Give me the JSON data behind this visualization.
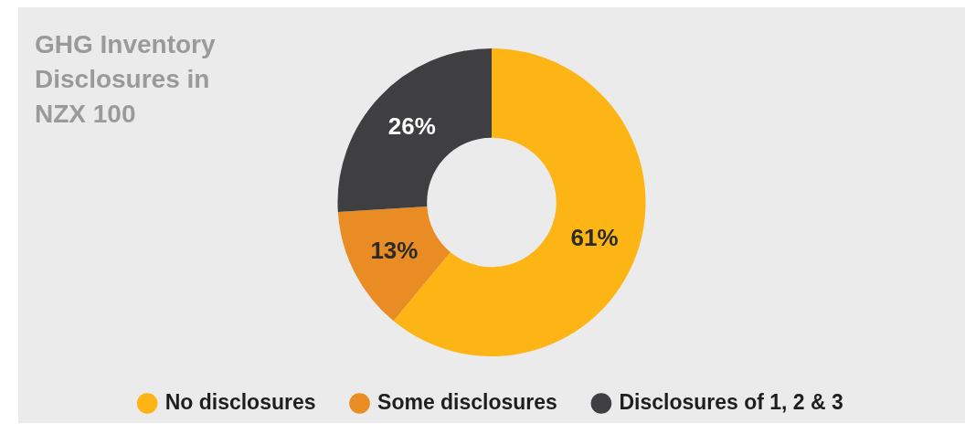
{
  "chart_data": {
    "type": "donut",
    "title": "GHG Inventory Disclosures in NZX 100",
    "categories": [
      "No disclosures",
      "Some disclosures",
      "Disclosures of 1, 2 & 3"
    ],
    "values": [
      61,
      13,
      26
    ],
    "colors": [
      "#fdb515",
      "#e98c24",
      "#3f3f41"
    ],
    "value_labels": [
      "61%",
      "13%",
      "26%"
    ],
    "legend": "bottom"
  }
}
